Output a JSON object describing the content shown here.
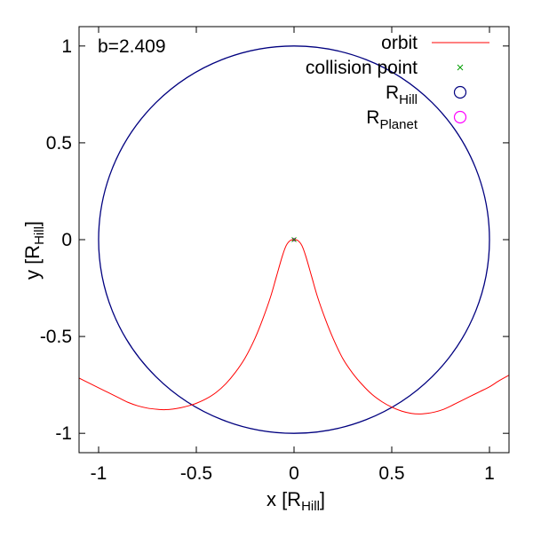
{
  "chart_data": {
    "type": "line",
    "annotation": "b=2.409",
    "xlabel": {
      "main": "x [R",
      "sub": "Hill",
      "close": "]"
    },
    "ylabel": {
      "main": "y [R",
      "sub": "Hill",
      "close": "]"
    },
    "xlim": [
      -1.1,
      1.1
    ],
    "ylim": [
      -1.1,
      1.1
    ],
    "xticks": [
      {
        "value": -1,
        "label": "-1"
      },
      {
        "value": -0.5,
        "label": "-0.5"
      },
      {
        "value": 0,
        "label": "0"
      },
      {
        "value": 0.5,
        "label": "0.5"
      },
      {
        "value": 1,
        "label": "1"
      }
    ],
    "yticks": [
      {
        "value": 1,
        "label": "1"
      },
      {
        "value": 0.5,
        "label": "0.5"
      },
      {
        "value": 0,
        "label": "0"
      },
      {
        "value": -0.5,
        "label": "-0.5"
      },
      {
        "value": -1,
        "label": "-1"
      }
    ],
    "grid": false,
    "legend_position": "top-right",
    "legend": [
      {
        "key": "orbit",
        "label": "orbit",
        "sub": "",
        "marker": "line",
        "color": "#ff0000"
      },
      {
        "key": "collision",
        "label": "collision point",
        "sub": "",
        "marker": "x",
        "color": "#009e00"
      },
      {
        "key": "hill",
        "label": "R",
        "sub": "Hill",
        "marker": "circle",
        "color": "#00007f"
      },
      {
        "key": "planet",
        "label": "R",
        "sub": "Planet",
        "marker": "circle",
        "color": "#ff00ff"
      }
    ],
    "series": [
      {
        "key": "orbit",
        "color": "#ff0000",
        "points": [
          [
            -1.1,
            -0.715
          ],
          [
            -1.05,
            -0.74
          ],
          [
            -1.0,
            -0.765
          ],
          [
            -0.95,
            -0.79
          ],
          [
            -0.9,
            -0.815
          ],
          [
            -0.85,
            -0.84
          ],
          [
            -0.8,
            -0.858
          ],
          [
            -0.75,
            -0.87
          ],
          [
            -0.7,
            -0.876
          ],
          [
            -0.66,
            -0.878
          ],
          [
            -0.62,
            -0.875
          ],
          [
            -0.58,
            -0.868
          ],
          [
            -0.54,
            -0.858
          ],
          [
            -0.5,
            -0.845
          ],
          [
            -0.45,
            -0.822
          ],
          [
            -0.4,
            -0.79
          ],
          [
            -0.35,
            -0.745
          ],
          [
            -0.3,
            -0.685
          ],
          [
            -0.25,
            -0.61
          ],
          [
            -0.2,
            -0.51
          ],
          [
            -0.16,
            -0.41
          ],
          [
            -0.12,
            -0.295
          ],
          [
            -0.09,
            -0.19
          ],
          [
            -0.06,
            -0.085
          ],
          [
            -0.04,
            -0.03
          ],
          [
            -0.02,
            -0.005
          ],
          [
            0.0,
            0.0
          ],
          [
            0.02,
            -0.005
          ],
          [
            0.04,
            -0.03
          ],
          [
            0.06,
            -0.085
          ],
          [
            0.09,
            -0.19
          ],
          [
            0.12,
            -0.295
          ],
          [
            0.16,
            -0.41
          ],
          [
            0.2,
            -0.51
          ],
          [
            0.25,
            -0.615
          ],
          [
            0.3,
            -0.69
          ],
          [
            0.35,
            -0.75
          ],
          [
            0.4,
            -0.8
          ],
          [
            0.45,
            -0.837
          ],
          [
            0.5,
            -0.865
          ],
          [
            0.55,
            -0.885
          ],
          [
            0.6,
            -0.897
          ],
          [
            0.64,
            -0.9
          ],
          [
            0.68,
            -0.897
          ],
          [
            0.72,
            -0.89
          ],
          [
            0.76,
            -0.878
          ],
          [
            0.8,
            -0.86
          ],
          [
            0.85,
            -0.835
          ],
          [
            0.9,
            -0.81
          ],
          [
            0.95,
            -0.785
          ],
          [
            1.0,
            -0.76
          ],
          [
            1.05,
            -0.728
          ],
          [
            1.1,
            -0.7
          ]
        ]
      }
    ],
    "circles": [
      {
        "key": "hill",
        "cx": 0,
        "cy": 0,
        "r": 1.0,
        "color": "#00007f"
      },
      {
        "key": "planet",
        "cx": 0,
        "cy": 0,
        "r": 0.006,
        "color": "#ff00ff"
      }
    ],
    "collision_point": {
      "x": 0.0,
      "y": 0.0,
      "color": "#009e00"
    }
  }
}
